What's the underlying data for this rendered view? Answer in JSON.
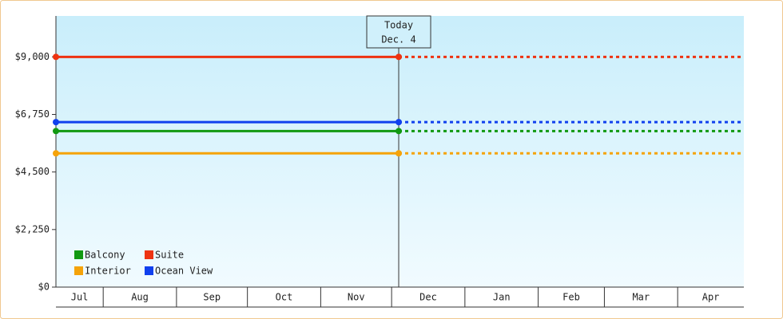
{
  "chart_data": {
    "type": "line",
    "series": [
      {
        "name": "Balcony",
        "color": "#119911",
        "values": [
          6100,
          6100
        ]
      },
      {
        "name": "Suite",
        "color": "#ee3311",
        "values": [
          9000,
          9000
        ]
      },
      {
        "name": "Interior",
        "color": "#f5a30a",
        "values": [
          5230,
          5230
        ]
      },
      {
        "name": "Ocean View",
        "color": "#1040ee",
        "values": [
          6450,
          6450
        ]
      }
    ],
    "x": [
      0,
      145
    ],
    "xlim": [
      0,
      291
    ],
    "months": [
      "Jul",
      "Aug",
      "Sep",
      "Oct",
      "Nov",
      "Dec",
      "Jan",
      "Feb",
      "Mar",
      "Apr"
    ],
    "month_bounds": [
      0,
      20,
      51,
      81,
      112,
      142,
      173,
      204,
      232,
      263,
      291
    ],
    "annotation": {
      "lines": [
        "Today",
        "Dec. 4"
      ],
      "x": 145
    },
    "ylim": [
      0,
      10600
    ],
    "yticks": [
      {
        "value": 0,
        "label": "$0"
      },
      {
        "value": 2250,
        "label": "$2,250"
      },
      {
        "value": 4500,
        "label": "$4,500"
      },
      {
        "value": 6750,
        "label": "$6,750"
      },
      {
        "value": 9000,
        "label": "$9,000"
      }
    ]
  }
}
